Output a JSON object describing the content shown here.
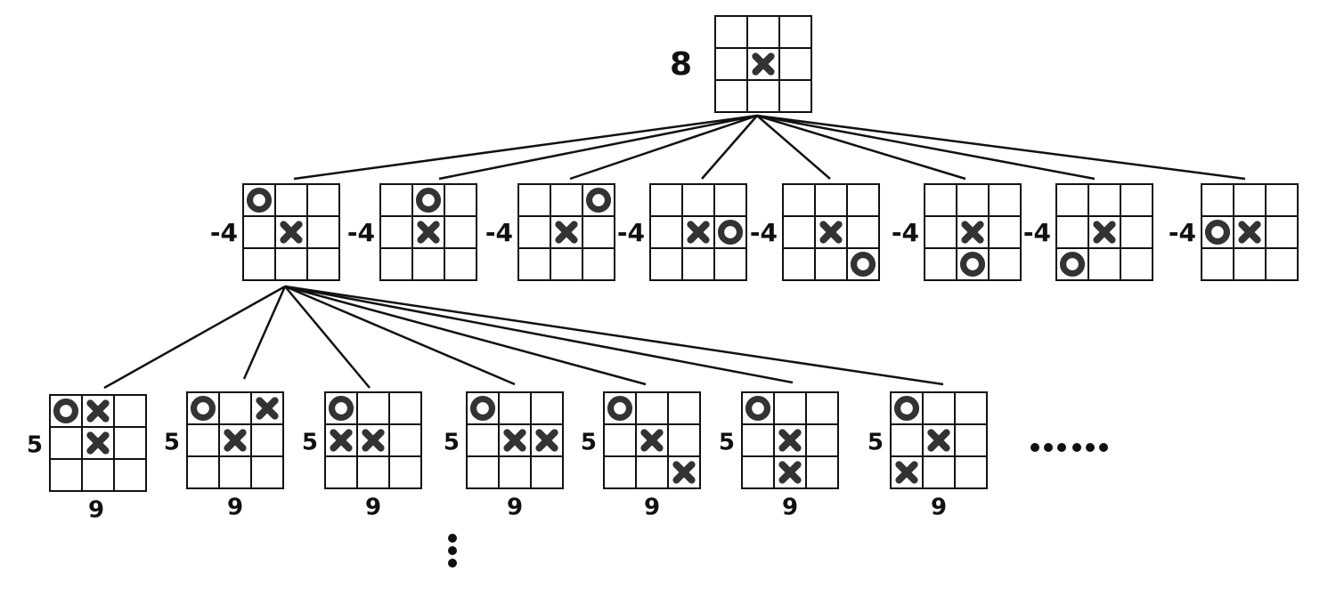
{
  "root": {
    "score": "8",
    "board": [
      "",
      "",
      "",
      "",
      "X",
      "",
      "",
      "",
      ""
    ]
  },
  "level1": [
    {
      "score": "-4",
      "board": [
        "O",
        "",
        "",
        "",
        "X",
        "",
        "",
        "",
        ""
      ]
    },
    {
      "score": "-4",
      "board": [
        "",
        "O",
        "",
        "",
        "X",
        "",
        "",
        "",
        ""
      ]
    },
    {
      "score": "-4",
      "board": [
        "",
        "",
        "O",
        "",
        "X",
        "",
        "",
        "",
        ""
      ]
    },
    {
      "score": "-4",
      "board": [
        "",
        "",
        "",
        "",
        "X",
        "O",
        "",
        "",
        ""
      ]
    },
    {
      "score": "-4",
      "board": [
        "",
        "",
        "",
        "",
        "X",
        "",
        "",
        "",
        "O"
      ]
    },
    {
      "score": "-4",
      "board": [
        "",
        "",
        "",
        "",
        "X",
        "",
        "",
        "O",
        ""
      ]
    },
    {
      "score": "-4",
      "board": [
        "",
        "",
        "",
        "",
        "X",
        "",
        "O",
        "",
        ""
      ]
    },
    {
      "score": "-4",
      "board": [
        "",
        "",
        "",
        "O",
        "X",
        "",
        "",
        "",
        ""
      ]
    }
  ],
  "level2": [
    {
      "left": "5",
      "below": "9",
      "board": [
        "O",
        "X",
        "",
        "",
        "X",
        "",
        "",
        "",
        ""
      ]
    },
    {
      "left": "5",
      "below": "9",
      "board": [
        "O",
        "",
        "X",
        "",
        "X",
        "",
        "",
        "",
        ""
      ]
    },
    {
      "left": "5",
      "below": "9",
      "board": [
        "O",
        "",
        "",
        "X",
        "X",
        "",
        "",
        "",
        ""
      ]
    },
    {
      "left": "5",
      "below": "9",
      "board": [
        "O",
        "",
        "",
        "",
        "X",
        "X",
        "",
        "",
        ""
      ]
    },
    {
      "left": "5",
      "below": "9",
      "board": [
        "O",
        "",
        "",
        "",
        "X",
        "",
        "",
        "",
        "X"
      ]
    },
    {
      "left": "5",
      "below": "9",
      "board": [
        "O",
        "",
        "",
        "",
        "X",
        "",
        "",
        "X",
        ""
      ]
    },
    {
      "left": "5",
      "below": "9",
      "board": [
        "O",
        "",
        "",
        "",
        "X",
        "",
        "X",
        "",
        ""
      ]
    }
  ],
  "ellipsis": "······",
  "colors": {
    "ink": "#111111",
    "piece": "#333333"
  }
}
